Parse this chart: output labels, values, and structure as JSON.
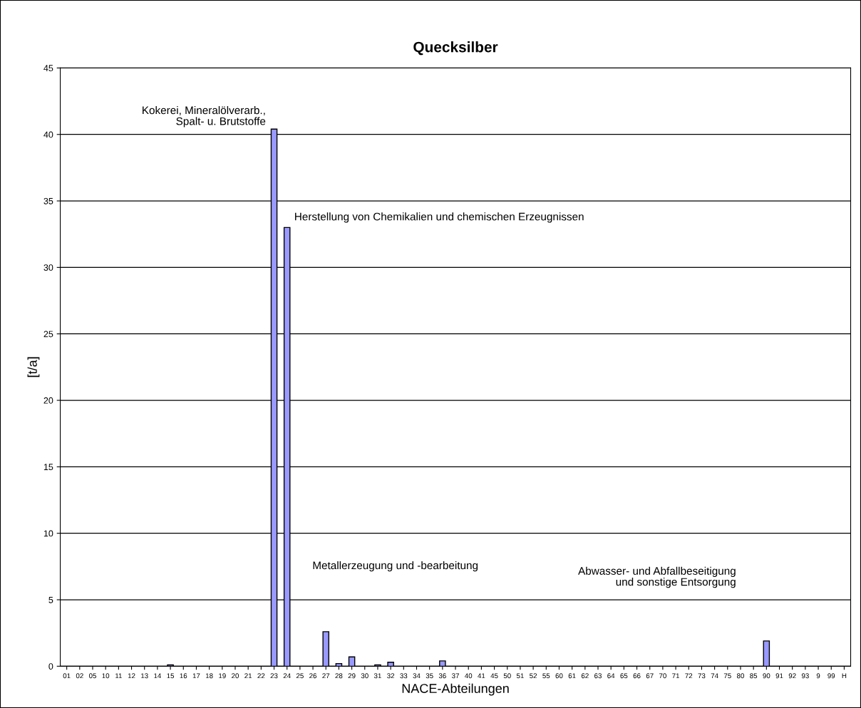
{
  "chart_data": {
    "type": "bar",
    "title": "Quecksilber",
    "xlabel": "NACE-Abteilungen",
    "ylabel": "[t/a]",
    "categories": [
      "01",
      "02",
      "05",
      "10",
      "11",
      "12",
      "13",
      "14",
      "15",
      "16",
      "17",
      "18",
      "19",
      "20",
      "21",
      "22",
      "23",
      "24",
      "25",
      "26",
      "27",
      "28",
      "29",
      "30",
      "31",
      "32",
      "33",
      "34",
      "35",
      "36",
      "37",
      "40",
      "41",
      "45",
      "50",
      "51",
      "52",
      "55",
      "60",
      "61",
      "62",
      "63",
      "64",
      "65",
      "66",
      "67",
      "70",
      "71",
      "72",
      "73",
      "74",
      "75",
      "80",
      "85",
      "90",
      "91",
      "92",
      "93",
      "9",
      "99",
      "H"
    ],
    "values": [
      0,
      0,
      0,
      0,
      0,
      0,
      0,
      0,
      0.1,
      0,
      0,
      0,
      0,
      0,
      0,
      0,
      40.4,
      33.0,
      0,
      0,
      2.6,
      0.2,
      0.7,
      0,
      0.1,
      0.3,
      0,
      0,
      0,
      0.4,
      0,
      0,
      0,
      0,
      0,
      0,
      0,
      0,
      0,
      0,
      0,
      0,
      0,
      0,
      0,
      0,
      0,
      0,
      0,
      0,
      0,
      0,
      0,
      0,
      1.9,
      0,
      0,
      0,
      0,
      0,
      0
    ],
    "color": "#9999ff",
    "ylim": [
      0,
      45
    ],
    "yticks": [
      0,
      5,
      10,
      15,
      20,
      25,
      30,
      35,
      40,
      45
    ],
    "grid": "y",
    "annotations": [
      "Kokerei, Mineralölverarb.,\nSpalt- u. Brutstoffe",
      "Herstellung von Chemikalien und chemischen Erzeugnissen",
      "Metallerzeugung und -bearbeitung",
      "Abwasser- und Abfallbeseitigung\nund sonstige Entsorgung"
    ]
  }
}
